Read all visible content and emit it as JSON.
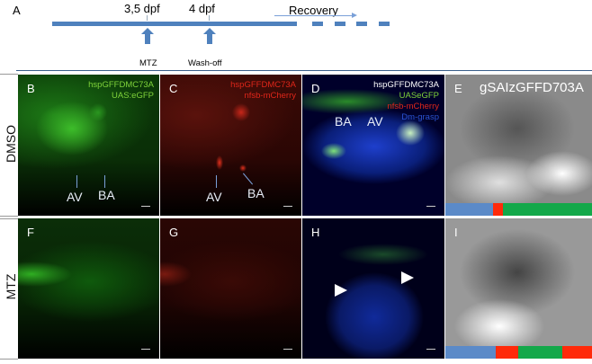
{
  "panel_a": {
    "letter": "A",
    "t1": "3,5 dpf",
    "t2": "4 dpf",
    "recovery": "Recovery",
    "mtz": "MTZ",
    "washoff": "Wash-off"
  },
  "rows": {
    "dmso": "DMSO",
    "mtz": "MTZ"
  },
  "panels": {
    "b": {
      "letter": "B",
      "line1": "hspGFFDMC73A",
      "line2": "UAS:eGFP",
      "av": "AV",
      "ba": "BA"
    },
    "c": {
      "letter": "C",
      "line1": "hspGFFDMC73A",
      "line2": "nfsb-mCherry",
      "av": "AV",
      "ba": "BA"
    },
    "d": {
      "letter": "D",
      "line1": "hspGFFDMC73A",
      "line2": "UASeGFP",
      "line3": "nfsb-mCherry",
      "line4": "Dm-grasp",
      "av": "AV",
      "ba": "BA"
    },
    "e": {
      "letter": "E",
      "title": "gSAIzGFFD703A"
    },
    "f": {
      "letter": "F"
    },
    "g": {
      "letter": "G"
    },
    "h": {
      "letter": "H"
    },
    "i": {
      "letter": "I"
    }
  },
  "colors": {
    "blue": "#4f81bd",
    "green_label": "#7fd33a",
    "red_label": "#e0261a",
    "dmgrasp": "#2a52d0",
    "seg_red": "#ff2a0a",
    "seg_green": "#13a84a"
  }
}
